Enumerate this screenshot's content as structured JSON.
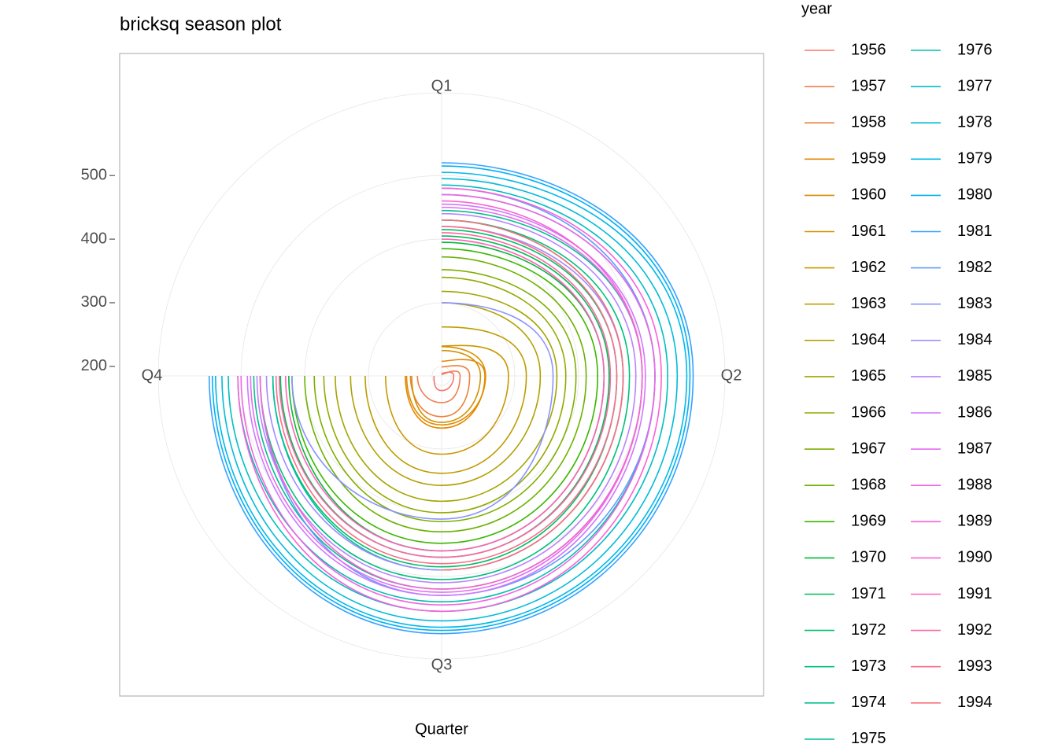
{
  "chart_data": {
    "type": "line",
    "title": "bricksq season plot",
    "x_label": "Quarter",
    "legend_title": "year",
    "coord": "polar",
    "categories": [
      "Q1",
      "Q2",
      "Q3",
      "Q4"
    ],
    "ylim": [
      185,
      630
    ],
    "yticks": [
      200,
      300,
      400,
      500
    ],
    "grid": true,
    "legend_position": "right",
    "series": [
      {
        "name": "1956",
        "color": "#F8766D",
        "values": [
          189,
          204,
          208,
          197
        ]
      },
      {
        "name": "1957",
        "color": "#F27D52",
        "values": [
          187,
          214,
          227,
          223
        ]
      },
      {
        "name": "1958",
        "color": "#EC823C",
        "values": [
          199,
          229,
          249,
          234
        ]
      },
      {
        "name": "1959",
        "color": "#E58700",
        "values": [
          208,
          253,
          267,
          242
        ]
      },
      {
        "name": "1960",
        "color": "#DD8D00",
        "values": [
          231,
          254,
          262,
          240
        ]
      },
      {
        "name": "1961",
        "color": "#D39200",
        "values": [
          225,
          246,
          258,
          232
        ]
      },
      {
        "name": "1962",
        "color": "#C99800",
        "values": [
          232,
          290,
          308,
          273
        ]
      },
      {
        "name": "1963",
        "color": "#BE9C00",
        "values": [
          262,
          318,
          338,
          305
        ]
      },
      {
        "name": "1964",
        "color": "#B1A000",
        "values": [
          300,
          340,
          357,
          328
        ]
      },
      {
        "name": "1965",
        "color": "#A3A500",
        "values": [
          318,
          366,
          382,
          352
        ]
      },
      {
        "name": "1966",
        "color": "#93AA00",
        "values": [
          340,
          380,
          400,
          370
        ]
      },
      {
        "name": "1967",
        "color": "#7FAE00",
        "values": [
          352,
          396,
          414,
          385
        ]
      },
      {
        "name": "1968",
        "color": "#6BB100",
        "values": [
          372,
          412,
          430,
          400
        ]
      },
      {
        "name": "1969",
        "color": "#39B600",
        "values": [
          385,
          430,
          448,
          420
        ]
      },
      {
        "name": "1970",
        "color": "#00BA38",
        "values": [
          395,
          440,
          460,
          425
        ]
      },
      {
        "name": "1971",
        "color": "#00BC59",
        "values": [
          405,
          448,
          470,
          438
        ]
      },
      {
        "name": "1972",
        "color": "#00BE6C",
        "values": [
          415,
          460,
          485,
          450
        ]
      },
      {
        "name": "1973",
        "color": "#00BF7D",
        "values": [
          430,
          480,
          505,
          470
        ]
      },
      {
        "name": "1974",
        "color": "#00C08E",
        "values": [
          445,
          500,
          520,
          480
        ]
      },
      {
        "name": "1975",
        "color": "#00C0A0",
        "values": [
          430,
          470,
          490,
          450
        ]
      },
      {
        "name": "1976",
        "color": "#00C0AF",
        "values": [
          470,
          520,
          540,
          505
        ]
      },
      {
        "name": "1977",
        "color": "#00BEC2",
        "values": [
          485,
          540,
          555,
          520
        ]
      },
      {
        "name": "1978",
        "color": "#00BCD8",
        "values": [
          495,
          555,
          570,
          530
        ]
      },
      {
        "name": "1979",
        "color": "#00B8E7",
        "values": [
          505,
          570,
          580,
          540
        ]
      },
      {
        "name": "1980",
        "color": "#00B0F6",
        "values": [
          515,
          575,
          585,
          545
        ]
      },
      {
        "name": "1981",
        "color": "#35A2FF",
        "values": [
          520,
          580,
          590,
          550
        ]
      },
      {
        "name": "1982",
        "color": "#619CFF",
        "values": [
          480,
          520,
          530,
          470
        ]
      },
      {
        "name": "1983",
        "color": "#8B93FF",
        "values": [
          300,
          360,
          410,
          420
        ]
      },
      {
        "name": "1984",
        "color": "#A58AFF",
        "values": [
          420,
          470,
          490,
          460
        ]
      },
      {
        "name": "1985",
        "color": "#B983FF",
        "values": [
          440,
          490,
          510,
          475
        ]
      },
      {
        "name": "1986",
        "color": "#D077FF",
        "values": [
          455,
          505,
          530,
          490
        ]
      },
      {
        "name": "1987",
        "color": "#E76BF3",
        "values": [
          450,
          500,
          525,
          485
        ]
      },
      {
        "name": "1988",
        "color": "#F265E3",
        "values": [
          470,
          520,
          545,
          500
        ]
      },
      {
        "name": "1989",
        "color": "#FA62D8",
        "values": [
          480,
          530,
          555,
          505
        ]
      },
      {
        "name": "1990",
        "color": "#FD61D1",
        "values": [
          460,
          500,
          520,
          470
        ]
      },
      {
        "name": "1991",
        "color": "#FF62BC",
        "values": [
          400,
          440,
          460,
          430
        ]
      },
      {
        "name": "1992",
        "color": "#FF67A4",
        "values": [
          410,
          450,
          470,
          440
        ]
      },
      {
        "name": "1993",
        "color": "#FC6D8A",
        "values": [
          420,
          460,
          480,
          445
        ]
      },
      {
        "name": "1994",
        "color": "#F8717A",
        "values": [
          430,
          470,
          490,
          null
        ]
      }
    ]
  }
}
